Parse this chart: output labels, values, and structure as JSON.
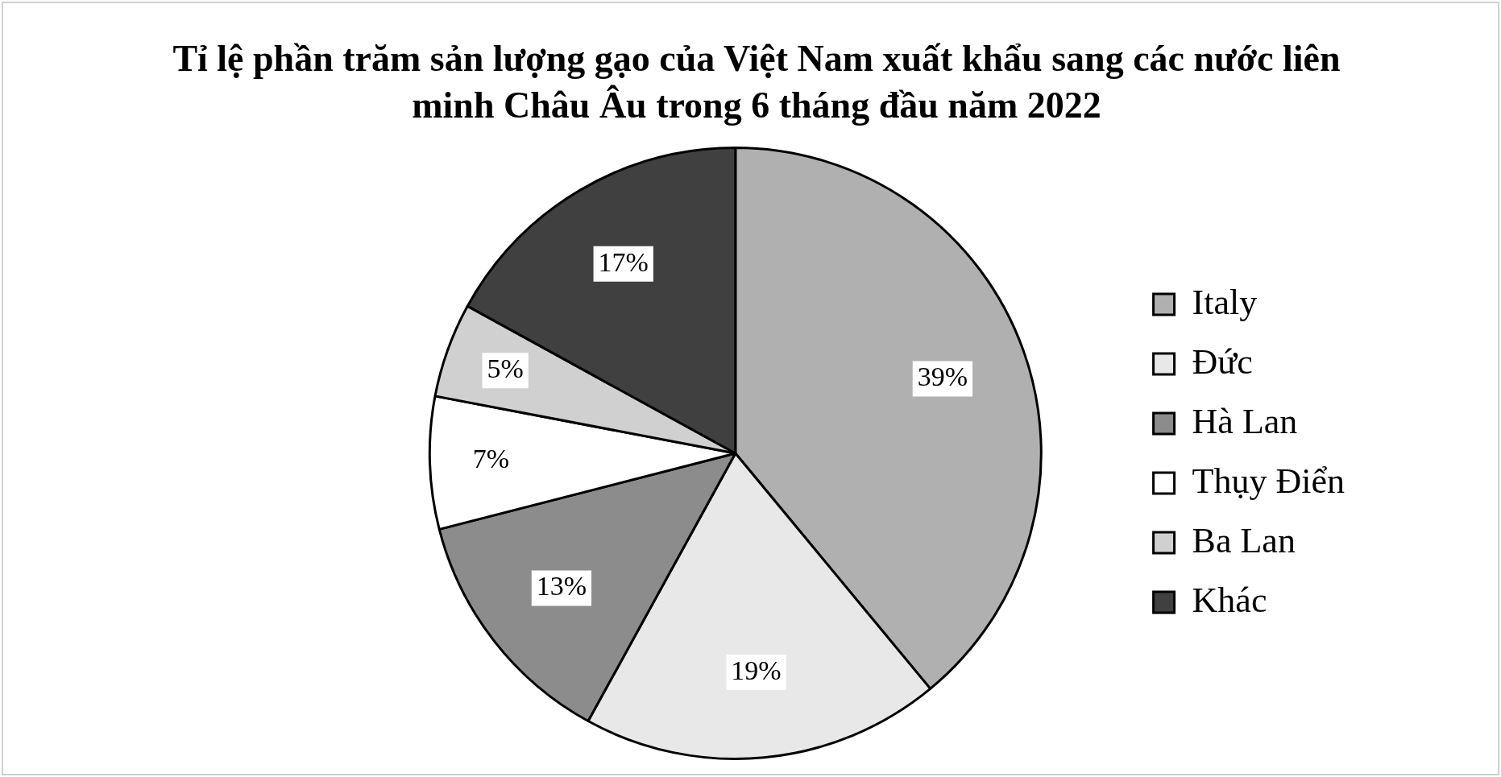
{
  "chart_data": {
    "type": "pie",
    "title": "Tỉ lệ phần trăm sản lượng gạo của Việt Nam xuất khẩu sang các nước liên minh Châu Âu trong 6 tháng đầu năm 2022",
    "categories": [
      "Italy",
      "Đức",
      "Hà Lan",
      "Thụy Điển",
      "Ba Lan",
      "Khác"
    ],
    "values": [
      39,
      19,
      13,
      7,
      5,
      17
    ],
    "colors": [
      "#b0b0b0",
      "#e8e8e8",
      "#8c8c8c",
      "#ffffff",
      "#d0d0d0",
      "#404040"
    ],
    "value_labels": [
      "39%",
      "19%",
      "13%",
      "7%",
      "5%",
      "17%"
    ],
    "legend": "right"
  }
}
